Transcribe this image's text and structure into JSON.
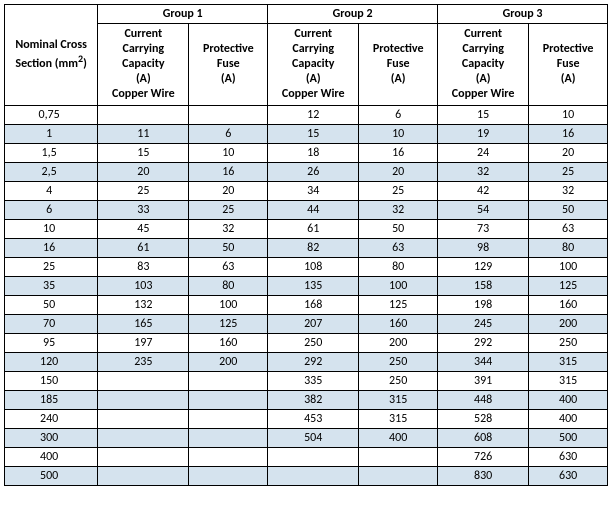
{
  "header": {
    "row_label": "Nominal Cross Section (mm²)",
    "groups": [
      "Group 1",
      "Group 2",
      "Group 3"
    ],
    "col_ccc": "Current Carrying Capacity (A) Copper Wire",
    "col_fuse": "Protective Fuse (A)"
  },
  "colors": {
    "stripe": "#d5e3ee",
    "border": "#000000",
    "background": "#ffffff"
  },
  "rows": [
    {
      "section": "0,75",
      "g1c": "",
      "g1f": "",
      "g2c": "12",
      "g2f": "6",
      "g3c": "15",
      "g3f": "10",
      "stripe": false
    },
    {
      "section": "1",
      "g1c": "11",
      "g1f": "6",
      "g2c": "15",
      "g2f": "10",
      "g3c": "19",
      "g3f": "16",
      "stripe": true
    },
    {
      "section": "1,5",
      "g1c": "15",
      "g1f": "10",
      "g2c": "18",
      "g2f": "16",
      "g3c": "24",
      "g3f": "20",
      "stripe": false
    },
    {
      "section": "2,5",
      "g1c": "20",
      "g1f": "16",
      "g2c": "26",
      "g2f": "20",
      "g3c": "32",
      "g3f": "25",
      "stripe": true
    },
    {
      "section": "4",
      "g1c": "25",
      "g1f": "20",
      "g2c": "34",
      "g2f": "25",
      "g3c": "42",
      "g3f": "32",
      "stripe": false
    },
    {
      "section": "6",
      "g1c": "33",
      "g1f": "25",
      "g2c": "44",
      "g2f": "32",
      "g3c": "54",
      "g3f": "50",
      "stripe": true
    },
    {
      "section": "10",
      "g1c": "45",
      "g1f": "32",
      "g2c": "61",
      "g2f": "50",
      "g3c": "73",
      "g3f": "63",
      "stripe": false
    },
    {
      "section": "16",
      "g1c": "61",
      "g1f": "50",
      "g2c": "82",
      "g2f": "63",
      "g3c": "98",
      "g3f": "80",
      "stripe": true
    },
    {
      "section": "25",
      "g1c": "83",
      "g1f": "63",
      "g2c": "108",
      "g2f": "80",
      "g3c": "129",
      "g3f": "100",
      "stripe": false
    },
    {
      "section": "35",
      "g1c": "103",
      "g1f": "80",
      "g2c": "135",
      "g2f": "100",
      "g3c": "158",
      "g3f": "125",
      "stripe": true
    },
    {
      "section": "50",
      "g1c": "132",
      "g1f": "100",
      "g2c": "168",
      "g2f": "125",
      "g3c": "198",
      "g3f": "160",
      "stripe": false
    },
    {
      "section": "70",
      "g1c": "165",
      "g1f": "125",
      "g2c": "207",
      "g2f": "160",
      "g3c": "245",
      "g3f": "200",
      "stripe": true
    },
    {
      "section": "95",
      "g1c": "197",
      "g1f": "160",
      "g2c": "250",
      "g2f": "200",
      "g3c": "292",
      "g3f": "250",
      "stripe": false
    },
    {
      "section": "120",
      "g1c": "235",
      "g1f": "200",
      "g2c": "292",
      "g2f": "250",
      "g3c": "344",
      "g3f": "315",
      "stripe": true
    },
    {
      "section": "150",
      "g1c": "",
      "g1f": "",
      "g2c": "335",
      "g2f": "250",
      "g3c": "391",
      "g3f": "315",
      "stripe": false
    },
    {
      "section": "185",
      "g1c": "",
      "g1f": "",
      "g2c": "382",
      "g2f": "315",
      "g3c": "448",
      "g3f": "400",
      "stripe": true
    },
    {
      "section": "240",
      "g1c": "",
      "g1f": "",
      "g2c": "453",
      "g2f": "315",
      "g3c": "528",
      "g3f": "400",
      "stripe": false
    },
    {
      "section": "300",
      "g1c": "",
      "g1f": "",
      "g2c": "504",
      "g2f": "400",
      "g3c": "608",
      "g3f": "500",
      "stripe": true
    },
    {
      "section": "400",
      "g1c": "",
      "g1f": "",
      "g2c": "",
      "g2f": "",
      "g3c": "726",
      "g3f": "630",
      "stripe": false
    },
    {
      "section": "500",
      "g1c": "",
      "g1f": "",
      "g2c": "",
      "g2f": "",
      "g3c": "830",
      "g3f": "630",
      "stripe": true
    }
  ]
}
